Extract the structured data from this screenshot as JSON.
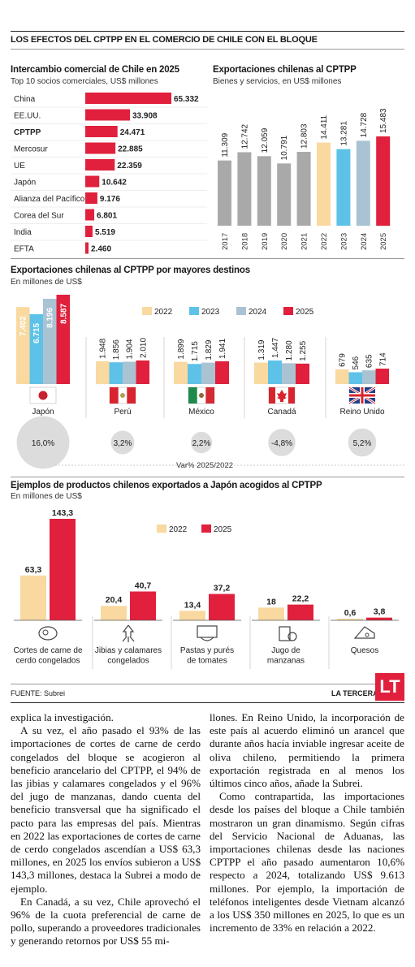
{
  "header": {
    "title": "LOS EFECTOS DEL CPTPP EN EL COMERCIO DE CHILE CON EL BLOQUE"
  },
  "colors": {
    "red": "#e0203c",
    "yellow": "#f9d9a0",
    "blue": "#5ec2e8",
    "lightblue": "#a9c3d3",
    "gray": "#a9a9a9"
  },
  "partners": {
    "title": "Intercambio comercial de Chile en 2025",
    "subtitle": "Top 10 socios comerciales, US$ millones"
  },
  "exports": {
    "title": "Exportaciones chilenas al CPTPP",
    "subtitle": "Bienes y servicios, en US$ millones"
  },
  "destinations": {
    "title": "Exportaciones chilenas al CPTPP por mayores destinos",
    "subtitle": "En millones de US$",
    "var_caption": "Var% 2025/2022"
  },
  "products": {
    "title": "Ejemplos de productos chilenos exportados a Japón acogidos al CPTPP",
    "subtitle": "En millones de US$"
  },
  "footer": {
    "source": "FUENTE: Subrei",
    "brand": "LA TERCERA",
    "logo": "LT"
  },
  "chart_data": [
    {
      "type": "bar",
      "orientation": "horizontal",
      "title": "Intercambio comercial de Chile en 2025",
      "subtitle": "Top 10 socios comerciales, US$ millones",
      "categories": [
        "China",
        "EE.UU.",
        "CPTPP",
        "Mercosur",
        "UE",
        "Japón",
        "Alianza del Pacífico",
        "Corea del Sur",
        "India",
        "EFTA"
      ],
      "values": [
        65332,
        33908,
        24471,
        22885,
        22359,
        10642,
        9176,
        6801,
        5519,
        2460
      ],
      "value_labels": [
        "65.332",
        "33.908",
        "24.471",
        "22.885",
        "22.359",
        "10.642",
        "9.176",
        "6.801",
        "5.519",
        "2.460"
      ],
      "highlight": "CPTPP"
    },
    {
      "type": "bar",
      "title": "Exportaciones chilenas al CPTPP",
      "subtitle": "Bienes y servicios, en US$ millones",
      "categories": [
        "2017",
        "2018",
        "2019",
        "2020",
        "2021",
        "2022",
        "2023",
        "2024",
        "2025"
      ],
      "values": [
        11309,
        12742,
        12059,
        10791,
        12803,
        14411,
        13281,
        14728,
        15483
      ],
      "value_labels": [
        "11.309",
        "12.742",
        "12.059",
        "10.791",
        "12.803",
        "14.411",
        "13.281",
        "14.728",
        "15.483"
      ],
      "bar_colors": [
        "#a9a9a9",
        "#a9a9a9",
        "#a9a9a9",
        "#a9a9a9",
        "#a9a9a9",
        "#f9d9a0",
        "#5ec2e8",
        "#a9c3d3",
        "#e0203c"
      ]
    },
    {
      "type": "bar",
      "title": "Exportaciones chilenas al CPTPP por mayores destinos",
      "subtitle": "En millones de US$",
      "categories": [
        "Japón",
        "Perú",
        "México",
        "Canadá",
        "Reino Unido"
      ],
      "series": [
        {
          "name": "2022",
          "color": "#f9d9a0",
          "values": [
            7402,
            1948,
            1899,
            1319,
            679
          ],
          "labels": [
            "7.402",
            "1.948",
            "1.899",
            "1.319",
            "679"
          ]
        },
        {
          "name": "2023",
          "color": "#5ec2e8",
          "values": [
            6715,
            1856,
            1715,
            1447,
            546
          ],
          "labels": [
            "6.715",
            "1.856",
            "1.715",
            "1.447",
            "546"
          ]
        },
        {
          "name": "2024",
          "color": "#a9c3d3",
          "values": [
            8196,
            1904,
            1829,
            1280,
            635
          ],
          "labels": [
            "8.196",
            "1.904",
            "1.829",
            "1.280",
            "635"
          ]
        },
        {
          "name": "2025",
          "color": "#e0203c",
          "values": [
            8587,
            2010,
            1941,
            1255,
            714
          ],
          "labels": [
            "8.587",
            "2.010",
            "1.941",
            "1.255",
            "714"
          ]
        }
      ],
      "var_caption": "Var% 2025/2022",
      "var_pct": [
        16.0,
        3.2,
        2.2,
        -4.8,
        5.2
      ],
      "var_labels": [
        "16,0%",
        "3,2%",
        "2,2%",
        "-4,8%",
        "5,2%"
      ],
      "legend": "top-right"
    },
    {
      "type": "bar",
      "title": "Ejemplos de productos chilenos exportados a Japón acogidos al CPTPP",
      "subtitle": "En millones de US$",
      "categories": [
        "Cortes de carne de cerdo congelados",
        "Jibias y calamares congelados",
        "Pastas y purés de tomates",
        "Jugo de manzanas",
        "Quesos"
      ],
      "category_lines": [
        [
          "Cortes de carne de",
          "cerdo congelados"
        ],
        [
          "Jibias y calamares",
          "congelados"
        ],
        [
          "Pastas y purés",
          "de tomates"
        ],
        [
          "Jugo de",
          "manzanas"
        ],
        [
          "Quesos"
        ]
      ],
      "category_icons": [
        "meat-icon",
        "squid-icon",
        "pasta-icon",
        "juice-icon",
        "cheese-icon"
      ],
      "series": [
        {
          "name": "2022",
          "color": "#f9d9a0",
          "values": [
            63.3,
            20.4,
            13.4,
            18,
            0.6
          ],
          "labels": [
            "63,3",
            "20,4",
            "13,4",
            "18",
            "0,6"
          ]
        },
        {
          "name": "2025",
          "color": "#e0203c",
          "values": [
            143.3,
            40.7,
            37.2,
            22.2,
            3.8
          ],
          "labels": [
            "143,3",
            "40,7",
            "37,2",
            "22,2",
            "3,8"
          ]
        }
      ],
      "legend": "top-center"
    }
  ],
  "article": {
    "left": [
      "explica la investigación.",
      "A su vez, el año pasado el 93% de las importaciones de cortes de carne de cerdo congelados del bloque se acogieron al beneficio arancelario del CPTPP, el 94% de las jibias y calamares congelados y el 96% del jugo de manzanas, dando cuenta del beneficio transversal que ha significado el pacto para las empresas del país. Mientras en 2022 las exportaciones de cortes de carne de cerdo congelados ascendían a US$ 63,3 millones, en 2025 los envíos subieron a US$ 143,3 millones, destaca la Subrei a modo de ejemplo.",
      "En Canadá, a su vez, Chile aprovechó el 96% de la cuota preferencial de carne de pollo, superando a proveedores tradicionales y generando retornos por US$ 55 mi-"
    ],
    "right": [
      "llones. En Reino Unido, la incorporación de este país al acuerdo eliminó un arancel que durante años hacía inviable ingresar aceite de oliva chileno, permitiendo la primera exportación registrada en al menos los últimos cinco años, añade la Subrei.",
      "Como contrapartida, las importaciones desde los países del bloque a Chile también mostraron un gran dinamismo. Según cifras del Servicio Nacional de Aduanas, las importaciones chilenas desde las naciones CPTPP el año pasado aumentaron 10,6% respecto a 2024, totalizando US$ 9.613 millones. Por ejemplo, la importación de teléfonos inteligentes desde Vietnam alcanzó a los US$ 350 millones en 2025, lo que es un incremento de 33% en relación a 2022."
    ]
  }
}
